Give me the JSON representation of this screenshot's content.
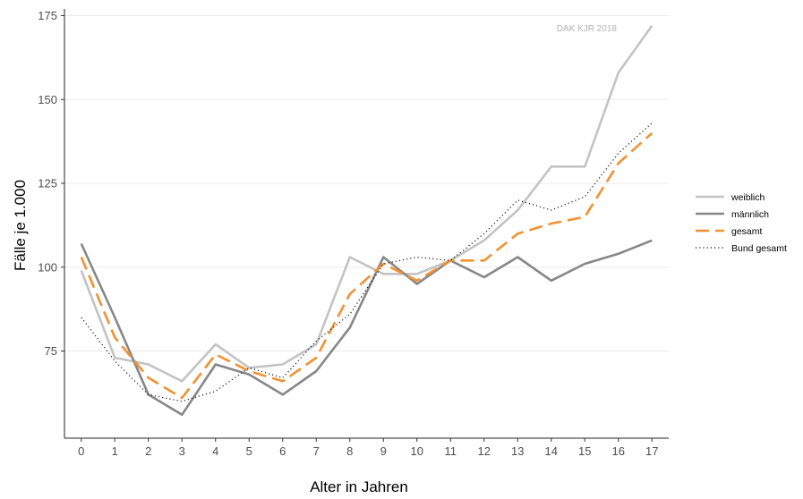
{
  "chart_data": {
    "type": "line",
    "title": "",
    "xlabel": "Alter in Jahren",
    "ylabel": "Fälle je 1.000",
    "annotation": "DAK KJR 2018",
    "x": [
      0,
      1,
      2,
      3,
      4,
      5,
      6,
      7,
      8,
      9,
      10,
      11,
      12,
      13,
      14,
      15,
      16,
      17
    ],
    "xlim": [
      -0.5,
      17.5
    ],
    "ylim": [
      49,
      177
    ],
    "y_ticks": [
      75,
      100,
      125,
      150,
      175
    ],
    "grid": "horizontal",
    "legend_position": "right",
    "series": [
      {
        "name": "weiblich",
        "color": "#c3c3c3",
        "dash": "solid",
        "values": [
          99,
          73,
          71,
          66,
          77,
          70,
          71,
          77,
          103,
          98,
          98,
          102,
          108,
          117,
          130,
          130,
          158,
          172
        ]
      },
      {
        "name": "männlich",
        "color": "#878787",
        "dash": "solid",
        "values": [
          107,
          85,
          62,
          56,
          71,
          68,
          62,
          69,
          82,
          103,
          95,
          102,
          97,
          103,
          96,
          101,
          104,
          108
        ]
      },
      {
        "name": "gesamt",
        "color": "#f39130",
        "dash": "dashed",
        "values": [
          103,
          79,
          67,
          61,
          74,
          69,
          66,
          73,
          92,
          101,
          96,
          102,
          102,
          110,
          113,
          115,
          131,
          140
        ]
      },
      {
        "name": "Bund gesamt",
        "color": "#111111",
        "dash": "dotted",
        "values": [
          85,
          72,
          62,
          60,
          63,
          70,
          67,
          78,
          86,
          101,
          103,
          102,
          110,
          120,
          117,
          121,
          134,
          143
        ]
      }
    ]
  }
}
